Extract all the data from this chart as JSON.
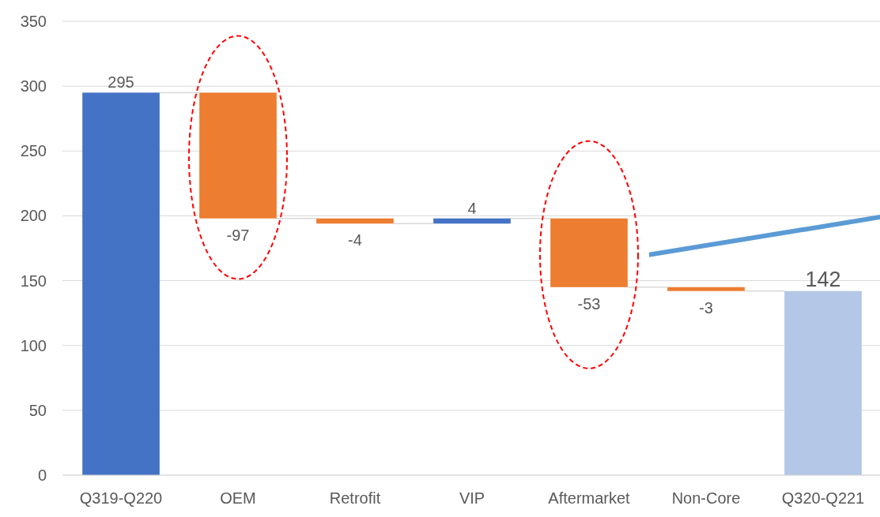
{
  "chart_data": {
    "type": "bar",
    "categories": [
      "Q319-Q220",
      "OEM",
      "Retrofit",
      "VIP",
      "Aftermarket",
      "Non-Core",
      "Q320-Q221"
    ],
    "values": [
      295,
      -97,
      -4,
      4,
      -53,
      -3,
      142
    ],
    "base": [
      0,
      295,
      198,
      194,
      198,
      145,
      0
    ],
    "colors": [
      "#4472c4",
      "#ed7d31",
      "#ed7d31",
      "#4472c4",
      "#ed7d31",
      "#ed7d31",
      "#b4c7e7"
    ],
    "ylim": [
      0,
      350
    ],
    "yticks": [
      0,
      50,
      100,
      150,
      200,
      250,
      300,
      350
    ],
    "grid": "y",
    "data_labels": true
  }
}
